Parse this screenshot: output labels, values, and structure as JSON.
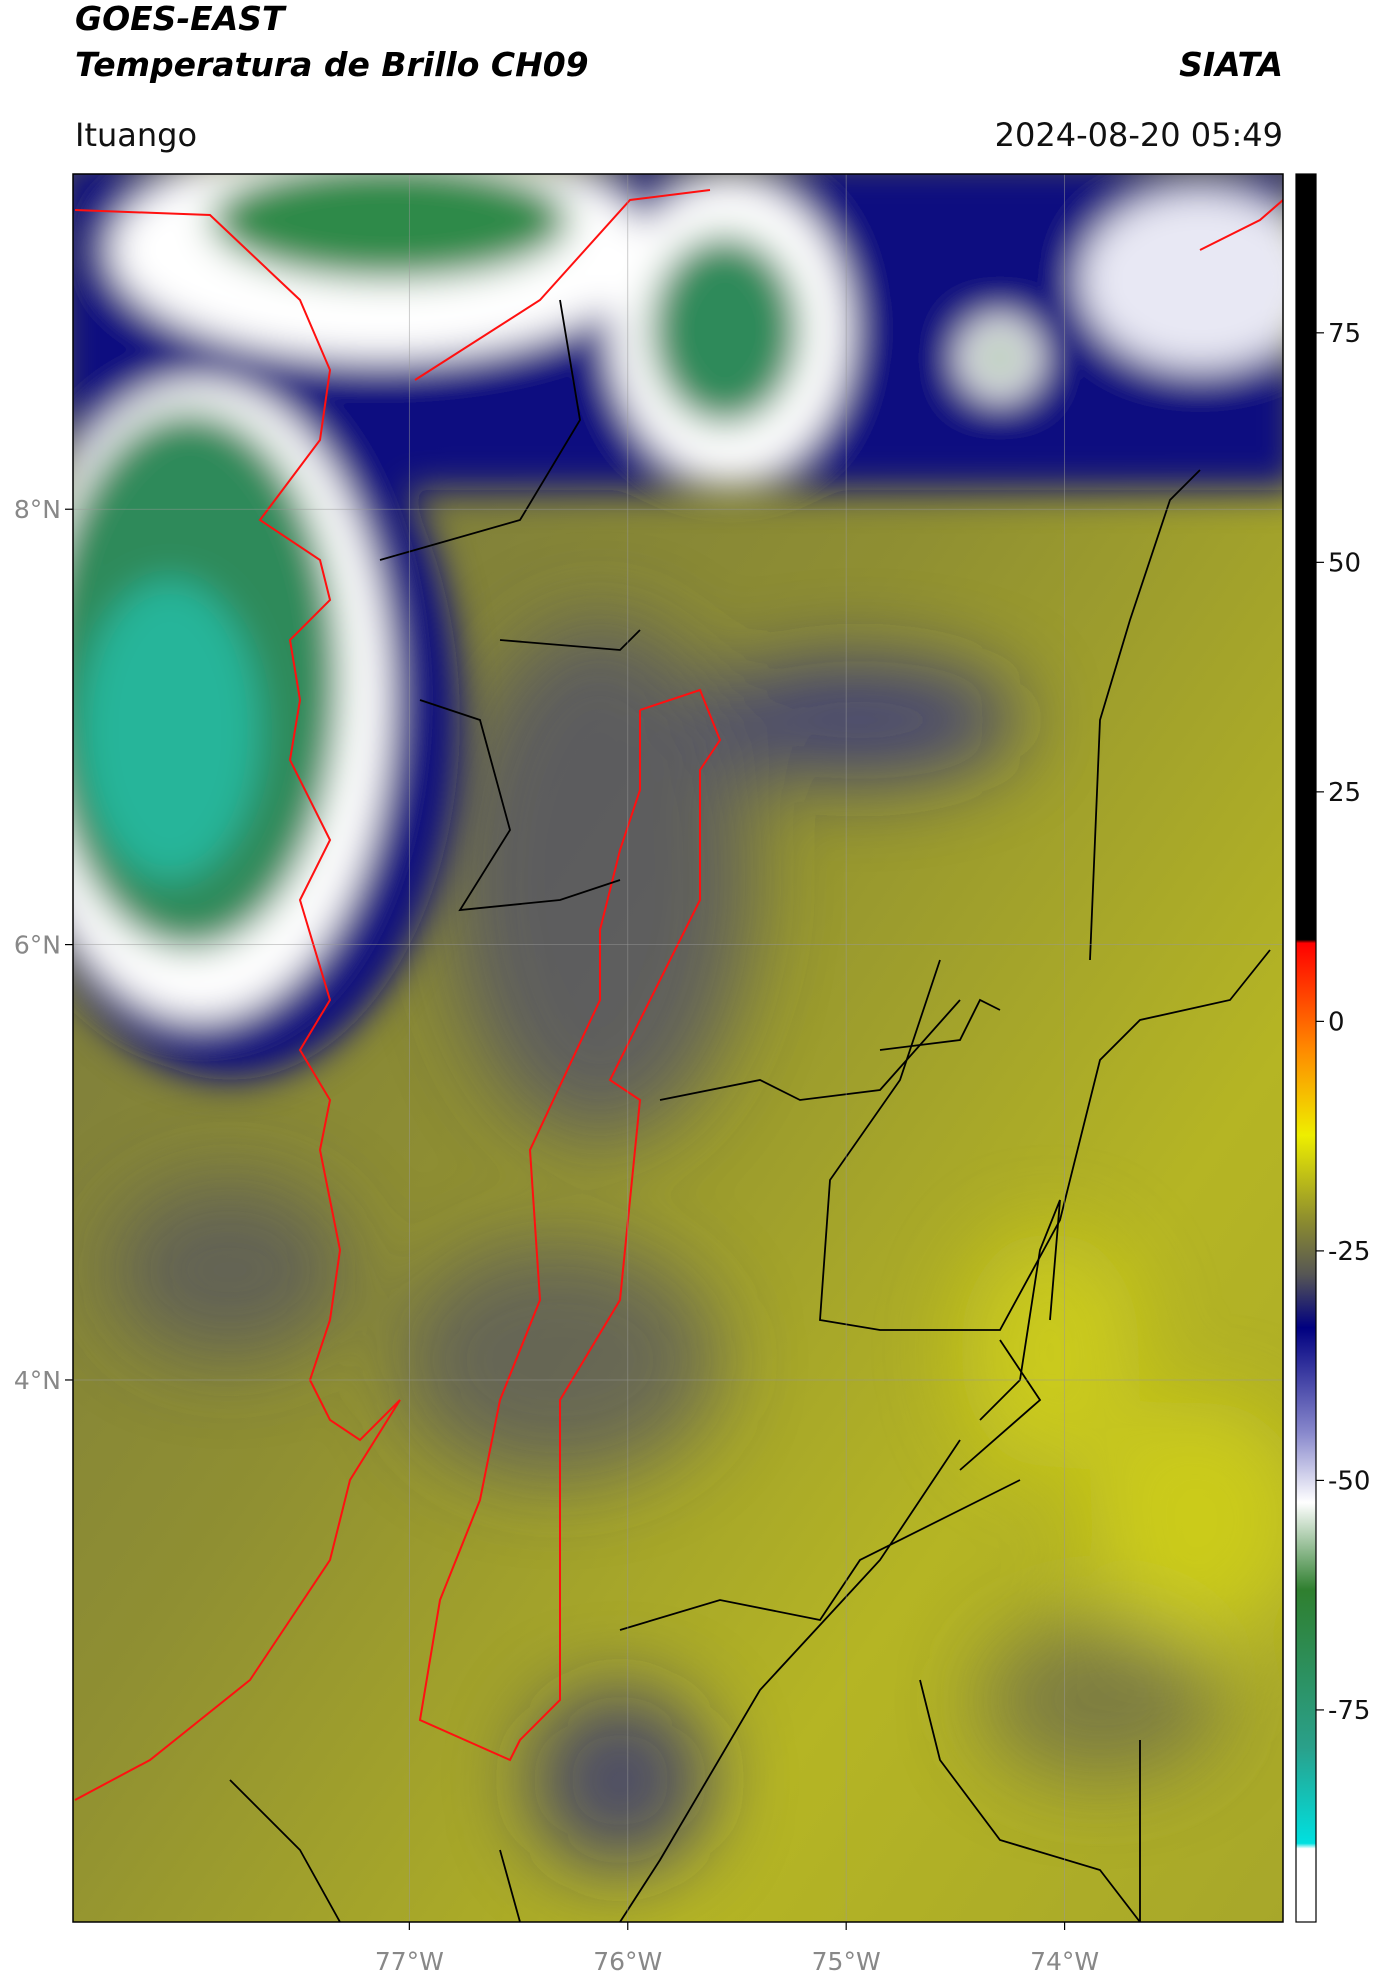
{
  "header": {
    "title": "GOES-EAST",
    "subtitle": "Temperatura de Brillo CH09",
    "org": "SIATA",
    "location": "Ituango",
    "datetime": "2024-08-20 05:49"
  },
  "map": {
    "xlim": [
      -78.54,
      -73.0
    ],
    "ylim": [
      1.51,
      9.54
    ],
    "xticks": [
      {
        "value": -77,
        "label": "77°W"
      },
      {
        "value": -76,
        "label": "76°W"
      },
      {
        "value": -75,
        "label": "75°W"
      },
      {
        "value": -74,
        "label": "74°W"
      }
    ],
    "yticks": [
      {
        "value": 8,
        "label": "8°N"
      },
      {
        "value": 6,
        "label": "6°N"
      },
      {
        "value": 4,
        "label": "4°N"
      }
    ],
    "grid": true
  },
  "colorbar": {
    "lim": [
      -98.1,
      92.3
    ],
    "ticks": [
      75,
      50,
      25,
      0,
      -25,
      -50,
      -75
    ]
  }
}
